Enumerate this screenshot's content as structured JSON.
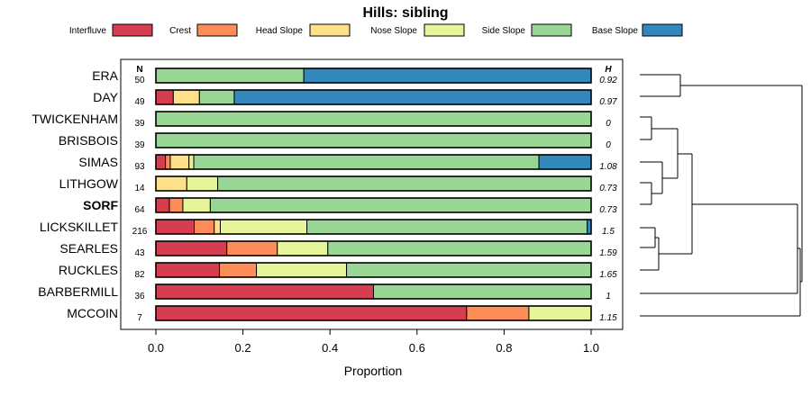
{
  "chart_data": {
    "type": "bar",
    "orientation": "horizontal-stacked",
    "title": "Hills: sibling",
    "xlabel": "Proportion",
    "ylabel": "",
    "xlim": [
      0,
      1
    ],
    "xticks": [
      0.0,
      0.2,
      0.4,
      0.6,
      0.8,
      1.0
    ],
    "xtick_labels": [
      "0.0",
      "0.2",
      "0.4",
      "0.6",
      "0.8",
      "1.0"
    ],
    "n_header": "N",
    "h_header": "H",
    "legend_position": "top",
    "series": [
      {
        "name": "Interfluve",
        "color": "#d53e4f"
      },
      {
        "name": "Crest",
        "color": "#fc8d59"
      },
      {
        "name": "Head Slope",
        "color": "#fee08b"
      },
      {
        "name": "Nose Slope",
        "color": "#e6f598"
      },
      {
        "name": "Side Slope",
        "color": "#99d594"
      },
      {
        "name": "Base Slope",
        "color": "#3288bd"
      }
    ],
    "rows": [
      {
        "label": "ERA",
        "bold": false,
        "n": "50",
        "h": "0.92",
        "values": [
          0,
          0,
          0,
          0,
          0.34,
          0.66
        ]
      },
      {
        "label": "DAY",
        "bold": false,
        "n": "49",
        "h": "0.97",
        "values": [
          0.04,
          0,
          0.06,
          0,
          0.08,
          0.82
        ]
      },
      {
        "label": "TWICKENHAM",
        "bold": false,
        "n": "39",
        "h": "0",
        "values": [
          0,
          0,
          0,
          0,
          1.0,
          0
        ]
      },
      {
        "label": "BRISBOIS",
        "bold": false,
        "n": "39",
        "h": "0",
        "values": [
          0,
          0,
          0,
          0,
          1.0,
          0
        ]
      },
      {
        "label": "SIMAS",
        "bold": false,
        "n": "93",
        "h": "1.08",
        "values": [
          0.022,
          0.011,
          0.043,
          0.011,
          0.793,
          0.12
        ]
      },
      {
        "label": "LITHGOW",
        "bold": false,
        "n": "14",
        "h": "0.73",
        "values": [
          0,
          0,
          0.071,
          0.071,
          0.858,
          0
        ]
      },
      {
        "label": "SORF",
        "bold": true,
        "n": "64",
        "h": "0.73",
        "values": [
          0.031,
          0.031,
          0,
          0.063,
          0.875,
          0
        ]
      },
      {
        "label": "LICKSKILLET",
        "bold": false,
        "n": "216",
        "h": "1.5",
        "values": [
          0.088,
          0.046,
          0.014,
          0.199,
          0.644,
          0.009
        ]
      },
      {
        "label": "SEARLES",
        "bold": false,
        "n": "43",
        "h": "1.59",
        "values": [
          0.163,
          0.116,
          0,
          0.116,
          0.605,
          0
        ]
      },
      {
        "label": "RUCKLES",
        "bold": false,
        "n": "82",
        "h": "1.65",
        "values": [
          0.146,
          0.085,
          0,
          0.207,
          0.562,
          0
        ]
      },
      {
        "label": "BARBERMILL",
        "bold": false,
        "n": "36",
        "h": "1",
        "values": [
          0.5,
          0,
          0,
          0,
          0.5,
          0
        ]
      },
      {
        "label": "MCCOIN",
        "bold": false,
        "n": "7",
        "h": "1.15",
        "values": [
          0.714,
          0.143,
          0,
          0.143,
          0,
          0
        ]
      }
    ],
    "dendrogram": "hierarchical clustering of the 12 rows shown at right"
  }
}
